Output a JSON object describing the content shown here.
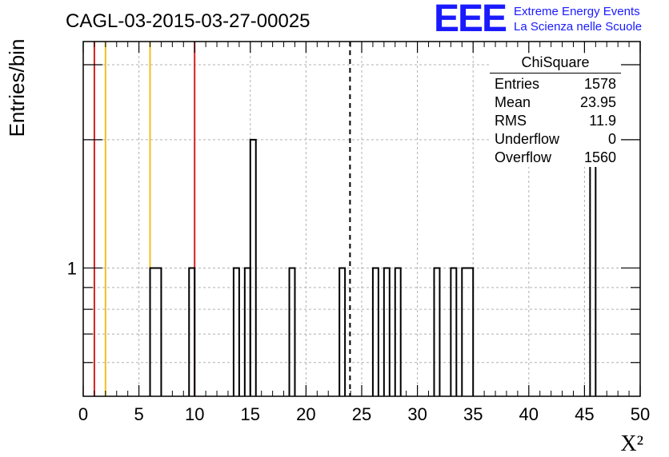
{
  "chart_data": {
    "type": "bar",
    "title": "CAGL-03-2015-03-27-00025",
    "ylabel": "Entries/bin",
    "xlabel": "X²",
    "y_tick_labels": [
      {
        "value": 1,
        "label": "1"
      }
    ],
    "xlim": [
      0,
      50
    ],
    "ylim_log": [
      0.5,
      3.4
    ],
    "log_y": true,
    "grid": true,
    "x_ticks": [
      0,
      5,
      10,
      15,
      20,
      25,
      30,
      35,
      40,
      45,
      50
    ],
    "bin_width": 0.5,
    "bins": [
      {
        "x0": 6.0,
        "x1": 7.0,
        "y": 1
      },
      {
        "x0": 9.5,
        "x1": 10.0,
        "y": 1
      },
      {
        "x0": 13.5,
        "x1": 14.0,
        "y": 1
      },
      {
        "x0": 14.5,
        "x1": 15.0,
        "y": 1
      },
      {
        "x0": 15.0,
        "x1": 15.5,
        "y": 2
      },
      {
        "x0": 18.5,
        "x1": 19.0,
        "y": 1
      },
      {
        "x0": 23.0,
        "x1": 23.5,
        "y": 1
      },
      {
        "x0": 26.0,
        "x1": 26.5,
        "y": 1
      },
      {
        "x0": 27.0,
        "x1": 27.5,
        "y": 1
      },
      {
        "x0": 28.0,
        "x1": 28.5,
        "y": 1
      },
      {
        "x0": 31.5,
        "x1": 32.0,
        "y": 1
      },
      {
        "x0": 33.0,
        "x1": 33.5,
        "y": 1
      },
      {
        "x0": 34.0,
        "x1": 35.0,
        "y": 1
      },
      {
        "x0": 45.5,
        "x1": 46.0,
        "y": 2
      }
    ],
    "vertical_lines": [
      {
        "x": 1,
        "color": "#d42020",
        "style": "solid"
      },
      {
        "x": 2,
        "color": "#f0c020",
        "style": "solid"
      },
      {
        "x": 6,
        "color": "#f0c020",
        "style": "solid"
      },
      {
        "x": 10,
        "color": "#d42020",
        "style": "solid"
      },
      {
        "x": 23.95,
        "color": "#000000",
        "style": "dashed"
      }
    ]
  },
  "stats": {
    "title": "ChiSquare",
    "rows": [
      {
        "label": "Entries",
        "value": "1578"
      },
      {
        "label": "Mean",
        "value": "23.95"
      },
      {
        "label": "RMS",
        "value": "11.9"
      },
      {
        "label": "Underflow",
        "value": "0"
      },
      {
        "label": "Overflow",
        "value": "1560"
      }
    ]
  },
  "logo": {
    "mark": "EEE",
    "line1": "Extreme Energy Events",
    "line2": "La Scienza nelle Scuole",
    "color": "#1a1aff"
  }
}
